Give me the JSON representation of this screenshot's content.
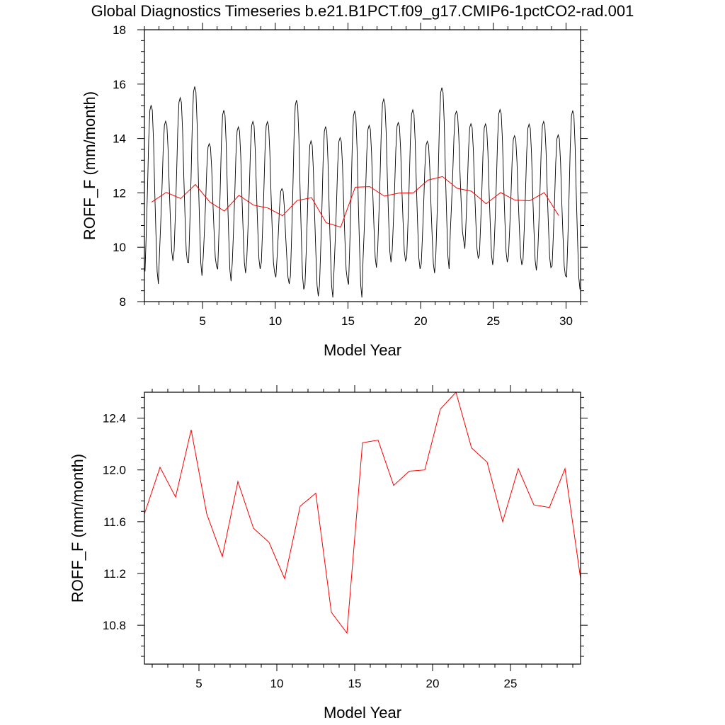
{
  "title": "Global Diagnostics Timeseries b.e21.B1PCT.f09_g17.CMIP6-1pctCO2-rad.001",
  "colors": {
    "monthly": "#000000",
    "annual": "#ff0000",
    "axes": "#000000"
  },
  "chart_data": [
    {
      "type": "line",
      "xlabel": "Model Year",
      "ylabel": "ROFF_F (mm/month)",
      "xlim": [
        1.0,
        31.0
      ],
      "ylim": [
        8,
        18
      ],
      "xticks": [
        5,
        10,
        15,
        20,
        25,
        30
      ],
      "xtick_labels": [
        "5",
        "10",
        "15",
        "20",
        "25",
        "30"
      ],
      "yticks": [
        8,
        10,
        12,
        14,
        16,
        18
      ],
      "ytick_labels": [
        "8",
        "10",
        "12",
        "14",
        "16",
        "18"
      ],
      "series": [
        {
          "kind": "monthly",
          "color": "#000000",
          "annual_peaks": [
            15.5,
            14.85,
            15.75,
            16.2,
            14.0,
            15.3,
            14.65,
            14.85,
            14.85,
            12.3,
            15.7,
            14.15,
            14.7,
            14.25,
            15.3,
            14.7,
            15.7,
            14.8,
            15.3,
            14.1,
            16.15,
            15.2,
            14.75,
            14.75,
            15.3,
            14.3,
            14.75,
            14.85,
            14.35,
            15.3
          ],
          "annual_troughs": [
            8.65,
            9.5,
            9.45,
            8.95,
            9.3,
            8.75,
            9.05,
            9.2,
            9.05,
            8.65,
            8.45,
            8.2,
            8.15,
            8.8,
            8.15,
            9.25,
            9.45,
            9.5,
            9.2,
            9.05,
            9.2,
            10.25,
            9.6,
            9.35,
            9.45,
            9.35,
            9.15,
            9.25,
            8.95,
            8.45
          ]
        },
        {
          "kind": "annual",
          "color": "#ff0000",
          "x": [
            1.5,
            2.5,
            3.5,
            4.5,
            5.5,
            6.5,
            7.5,
            8.5,
            9.5,
            10.5,
            11.5,
            12.5,
            13.5,
            14.5,
            15.5,
            16.5,
            17.5,
            18.5,
            19.5,
            20.5,
            21.5,
            22.5,
            23.5,
            24.5,
            25.5,
            26.5,
            27.5,
            28.5,
            29.5
          ],
          "y": [
            11.66,
            12.02,
            11.79,
            12.31,
            11.66,
            11.33,
            11.91,
            11.55,
            11.44,
            11.16,
            11.72,
            11.82,
            10.9,
            10.74,
            12.21,
            12.23,
            11.88,
            11.99,
            12.0,
            12.47,
            12.6,
            12.17,
            12.06,
            11.6,
            12.01,
            11.73,
            11.71,
            12.01,
            11.16
          ]
        }
      ]
    },
    {
      "type": "line",
      "xlabel": "Model Year",
      "ylabel": "ROFF_F (mm/month)",
      "xlim": [
        1.5,
        29.5
      ],
      "ylim": [
        10.5,
        12.6
      ],
      "xticks": [
        5,
        10,
        15,
        20,
        25
      ],
      "xtick_labels": [
        "5",
        "10",
        "15",
        "20",
        "25"
      ],
      "yticks": [
        10.8,
        11.2,
        11.6,
        12.0,
        12.4
      ],
      "ytick_labels": [
        "10.8",
        "11.2",
        "11.6",
        "12.0",
        "12.4"
      ],
      "series": [
        {
          "kind": "annual",
          "color": "#ff0000",
          "x": [
            1.5,
            2.5,
            3.5,
            4.5,
            5.5,
            6.5,
            7.5,
            8.5,
            9.5,
            10.5,
            11.5,
            12.5,
            13.5,
            14.5,
            15.5,
            16.5,
            17.5,
            18.5,
            19.5,
            20.5,
            21.5,
            22.5,
            23.5,
            24.5,
            25.5,
            26.5,
            27.5,
            28.5,
            29.5
          ],
          "y": [
            11.66,
            12.02,
            11.79,
            12.31,
            11.66,
            11.33,
            11.91,
            11.55,
            11.44,
            11.16,
            11.72,
            11.82,
            10.9,
            10.74,
            12.21,
            12.23,
            11.88,
            11.99,
            12.0,
            12.47,
            12.6,
            12.17,
            12.06,
            11.6,
            12.01,
            11.73,
            11.71,
            12.01,
            11.16
          ]
        }
      ]
    }
  ]
}
